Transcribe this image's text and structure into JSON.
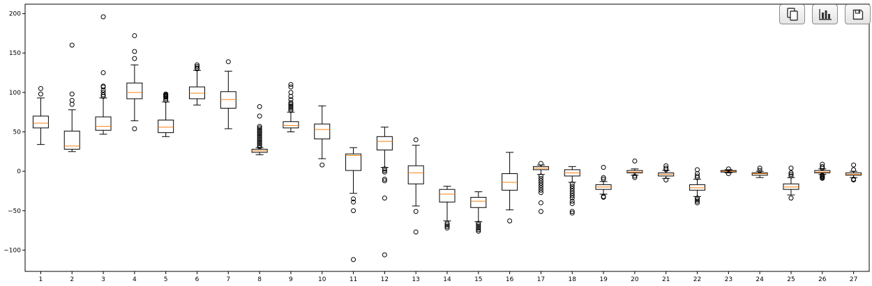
{
  "toolbar": {
    "buttons": [
      {
        "name": "copy-button",
        "icon": "copy-icon"
      },
      {
        "name": "chart-type-button",
        "icon": "bar-chart-icon"
      },
      {
        "name": "save-button",
        "icon": "save-icon"
      }
    ]
  },
  "chart_data": {
    "type": "boxplot",
    "title": "",
    "xlabel": "",
    "ylabel": "",
    "ylim": [
      -127,
      212
    ],
    "yticks": [
      -100,
      -50,
      0,
      50,
      100,
      150,
      200
    ],
    "grid": false,
    "legend": "none",
    "box_color": "#000000",
    "median_color": "#ff7f0e",
    "categories": [
      "1",
      "2",
      "3",
      "4",
      "5",
      "6",
      "7",
      "8",
      "9",
      "10",
      "11",
      "12",
      "13",
      "14",
      "15",
      "16",
      "17",
      "18",
      "19",
      "20",
      "21",
      "22",
      "23",
      "24",
      "25",
      "26",
      "27"
    ],
    "boxes": [
      {
        "whislo": 34,
        "q1": 55,
        "med": 61,
        "q3": 70,
        "whishi": 93,
        "fliers": [
          98,
          105
        ]
      },
      {
        "whislo": 25,
        "q1": 28,
        "med": 32,
        "q3": 51,
        "whishi": 78,
        "fliers": [
          85,
          90,
          98,
          160
        ]
      },
      {
        "whislo": 47,
        "q1": 52,
        "med": 57,
        "q3": 69,
        "whishi": 93,
        "fliers": [
          95,
          97,
          100,
          103,
          107,
          108,
          125,
          196
        ]
      },
      {
        "whislo": 64,
        "q1": 92,
        "med": 100,
        "q3": 112,
        "whishi": 135,
        "fliers": [
          54,
          143,
          152,
          172
        ]
      },
      {
        "whislo": 44,
        "q1": 49,
        "med": 56,
        "q3": 65,
        "whishi": 88,
        "fliers": [
          90,
          92,
          94,
          95,
          96,
          97,
          98
        ]
      },
      {
        "whislo": 84,
        "q1": 92,
        "med": 99,
        "q3": 107,
        "whishi": 128,
        "fliers": [
          130,
          131,
          133,
          135
        ]
      },
      {
        "whislo": 54,
        "q1": 80,
        "med": 91,
        "q3": 101,
        "whishi": 127,
        "fliers": [
          139
        ]
      },
      {
        "whislo": 21,
        "q1": 24,
        "med": 26,
        "q3": 28,
        "whishi": 30,
        "fliers": [
          31,
          33,
          35,
          37,
          39,
          41,
          43,
          45,
          47,
          49,
          51,
          53,
          55,
          57,
          70,
          82
        ]
      },
      {
        "whislo": 50,
        "q1": 55,
        "med": 58,
        "q3": 63,
        "whishi": 75,
        "fliers": [
          77,
          79,
          81,
          83,
          85,
          87,
          91,
          95,
          100,
          107,
          110
        ]
      },
      {
        "whislo": 16,
        "q1": 41,
        "med": 53,
        "q3": 60,
        "whishi": 83,
        "fliers": [
          8
        ]
      },
      {
        "whislo": -28,
        "q1": 1,
        "med": 20,
        "q3": 22,
        "whishi": 30,
        "fliers": [
          -35,
          -39,
          -50,
          -112
        ]
      },
      {
        "whislo": 5,
        "q1": 27,
        "med": 38,
        "q3": 44,
        "whishi": 56,
        "fliers": [
          3,
          1,
          -1,
          -10,
          -12,
          -34,
          -106
        ]
      },
      {
        "whislo": -44,
        "q1": -16,
        "med": -2,
        "q3": 7,
        "whishi": 33,
        "fliers": [
          40,
          -51,
          -77
        ]
      },
      {
        "whislo": -63,
        "q1": -39,
        "med": -29,
        "q3": -23,
        "whishi": -19,
        "fliers": [
          -66,
          -68,
          -70,
          -72
        ]
      },
      {
        "whislo": -64,
        "q1": -46,
        "med": -38,
        "q3": -33,
        "whishi": -26,
        "fliers": [
          -66,
          -68,
          -70,
          -72,
          -74,
          -76
        ]
      },
      {
        "whislo": -49,
        "q1": -24,
        "med": -14,
        "q3": -3,
        "whishi": 24,
        "fliers": [
          -63
        ]
      },
      {
        "whislo": -4,
        "q1": 2,
        "med": 4,
        "q3": 6,
        "whishi": 8,
        "fliers": [
          10,
          -6,
          -9,
          -12,
          -15,
          -18,
          -21,
          -24,
          -27,
          -40,
          -51
        ]
      },
      {
        "whislo": -14,
        "q1": -6,
        "med": -2,
        "q3": 2,
        "whishi": 6,
        "fliers": [
          -16,
          -19,
          -22,
          -25,
          -28,
          -31,
          -34,
          -38,
          -41,
          -51,
          -53
        ]
      },
      {
        "whislo": -29,
        "q1": -23,
        "med": -20,
        "q3": -17,
        "whishi": -13,
        "fliers": [
          -10,
          -8,
          5,
          -32,
          -33
        ]
      },
      {
        "whislo": -5,
        "q1": -2,
        "med": -1,
        "q3": 1,
        "whishi": 3,
        "fliers": [
          -6,
          -8,
          13
        ]
      },
      {
        "whislo": -9,
        "q1": -6,
        "med": -4,
        "q3": -2,
        "whishi": 1,
        "fliers": [
          2,
          4,
          7,
          -11
        ]
      },
      {
        "whislo": -32,
        "q1": -24,
        "med": -21,
        "q3": -17,
        "whishi": -10,
        "fliers": [
          -8,
          -6,
          -3,
          2,
          -34,
          -36,
          -38,
          -40
        ]
      },
      {
        "whislo": -2,
        "q1": -1,
        "med": 0,
        "q3": 1,
        "whishi": 2,
        "fliers": [
          3,
          -3
        ]
      },
      {
        "whislo": -8,
        "q1": -5,
        "med": -3,
        "q3": -2,
        "whishi": 0,
        "fliers": [
          1,
          4
        ]
      },
      {
        "whislo": -30,
        "q1": -23,
        "med": -20,
        "q3": -16,
        "whishi": -8,
        "fliers": [
          -6,
          -4,
          -2,
          4,
          -34
        ]
      },
      {
        "whislo": -4,
        "q1": -2,
        "med": -1,
        "q3": 1,
        "whishi": 3,
        "fliers": [
          -5,
          -6,
          -7,
          -8,
          -9,
          4,
          6,
          9
        ]
      },
      {
        "whislo": -8,
        "q1": -5,
        "med": -4,
        "q3": -2,
        "whishi": 0,
        "fliers": [
          -10,
          -11,
          2,
          8
        ]
      }
    ]
  }
}
